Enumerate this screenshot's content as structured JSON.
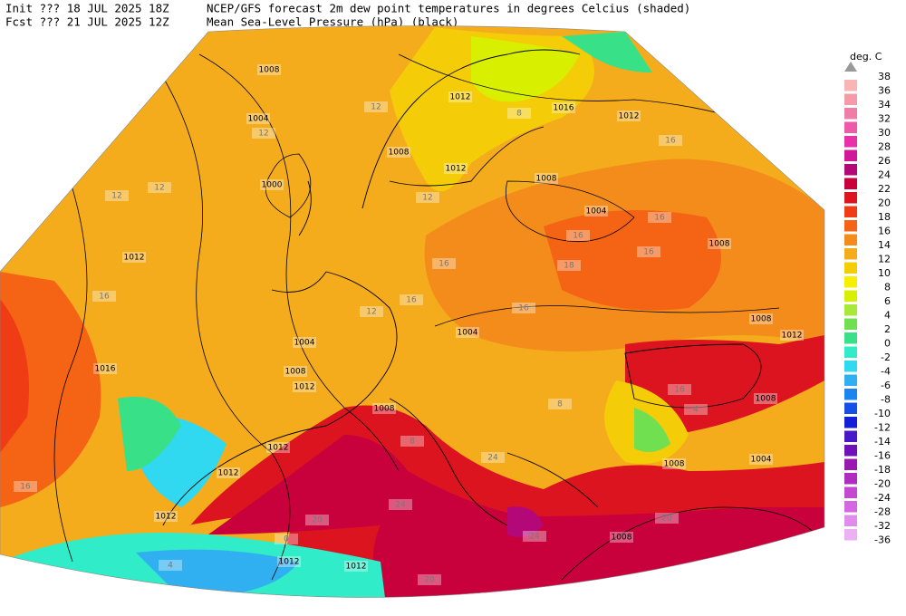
{
  "header": {
    "init": "Init  ??? 18 JUL 2025 18Z",
    "fcst": "Fcst ??? 21 JUL 2025 12Z",
    "title": "NCEP/GFS forecast 2m dew point temperatures in degrees Celcius (shaded)",
    "subtitle": "Mean Sea-Level Pressure (hPa) (black)"
  },
  "colorbar": {
    "unit": "deg. C",
    "levels": [
      38,
      36,
      34,
      32,
      30,
      28,
      26,
      24,
      22,
      20,
      18,
      16,
      14,
      12,
      10,
      8,
      6,
      4,
      2,
      0,
      -2,
      -4,
      -6,
      -8,
      -10,
      -12,
      -14,
      -16,
      -18,
      -20,
      -24,
      -28,
      -32,
      -36
    ],
    "colors": [
      "#f9b4b4",
      "#f49aa8",
      "#f07ca8",
      "#ec5aa8",
      "#e830a8",
      "#d01898",
      "#b40878",
      "#c8003c",
      "#dc1420",
      "#f03c14",
      "#f46414",
      "#f48c1c",
      "#f4ac1c",
      "#f4cc08",
      "#f4f000",
      "#d8f000",
      "#a8e838",
      "#70e050",
      "#38e088",
      "#30ecc8",
      "#30d8f0",
      "#30b0f0",
      "#1c84f0",
      "#1450e8",
      "#1420d8",
      "#4818c8",
      "#7010b8",
      "#9818b0",
      "#b02cc0",
      "#c448d0",
      "#d468e0",
      "#e08cec",
      "#ecb0f4"
    ]
  },
  "map": {
    "isobar_labels": [
      "1008",
      "1004",
      "1000",
      "1012",
      "1016",
      "1004",
      "1008",
      "1012",
      "1012",
      "1016",
      "1012",
      "1008",
      "1012",
      "1008",
      "1004",
      "1008",
      "1008",
      "1012",
      "1004",
      "1008",
      "1012",
      "1012",
      "1012",
      "1012",
      "1012",
      "1008",
      "1008",
      "1004",
      "1008"
    ],
    "dewpoint_labels": [
      "12",
      "12",
      "12",
      "12",
      "16",
      "16",
      "16",
      "16",
      "16",
      "18",
      "16",
      "16",
      "16",
      "16",
      "24",
      "20",
      "20",
      "24",
      "20",
      "8",
      "12",
      "8",
      "4",
      "0",
      "4",
      "16",
      "12",
      "8",
      "24"
    ]
  }
}
